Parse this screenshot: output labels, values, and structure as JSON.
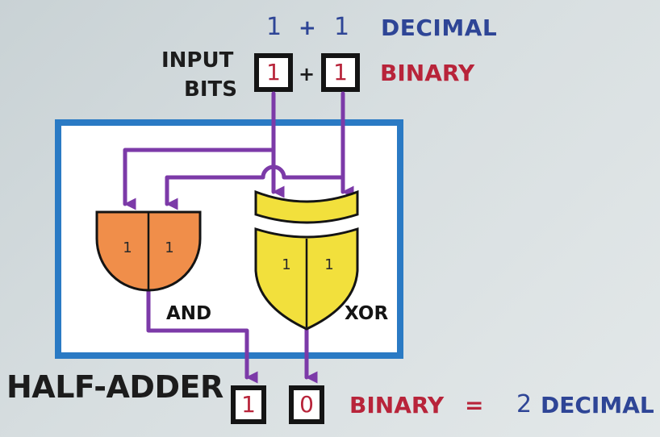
{
  "top_row": {
    "a": "1",
    "plus": "+",
    "b": "1",
    "label": "DECIMAL"
  },
  "input": {
    "label_line1": "INPUT",
    "label_line2": "BITS",
    "bit_a": "1",
    "plus": "+",
    "bit_b": "1",
    "label": "BINARY"
  },
  "gates": {
    "and": {
      "label": "AND",
      "in_a": "1",
      "in_b": "1",
      "fill": "#f08e4a"
    },
    "xor": {
      "label": "XOR",
      "in_a": "1",
      "in_b": "1",
      "fill": "#f2e03c"
    }
  },
  "title": "HALF-ADDER",
  "output": {
    "carry": "1",
    "sum": "0",
    "binary_label": "BINARY",
    "equals": "=",
    "decimal_value": "2",
    "decimal_label": "DECIMAL"
  },
  "colors": {
    "wire": "#7c3aa8",
    "frame": "#2a7ac4",
    "binary_red": "#b8243a",
    "decimal_blue": "#2e4596"
  }
}
